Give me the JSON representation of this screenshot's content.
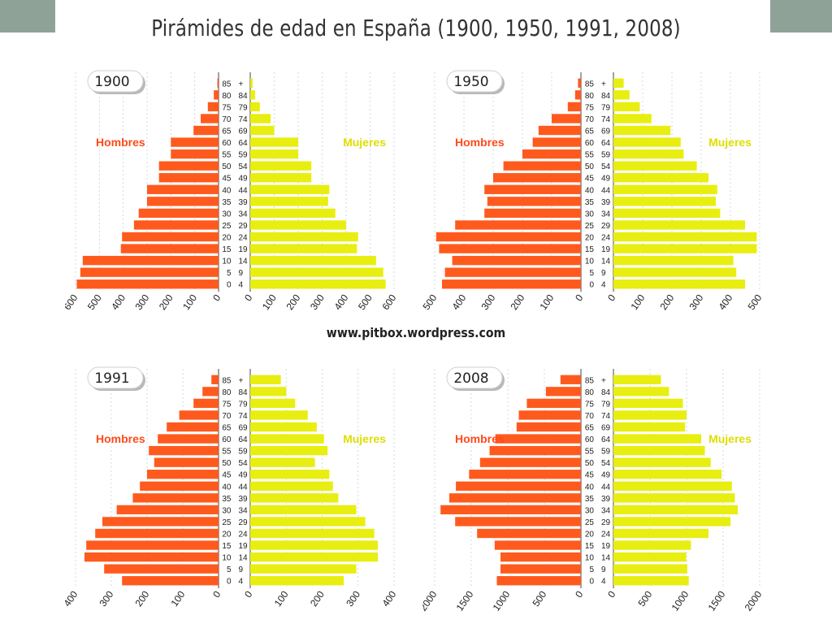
{
  "title": "Pirámides de edad en España (1900, 1950, 1991, 2008)",
  "credit": "www.pitbox.wordpress.com",
  "colors": {
    "hombres": "#ff5a1e",
    "mujeres": "#e8ee10",
    "label_hombres": "#ff4a1a",
    "label_mujeres": "#dede00",
    "grid": "#c8dde6"
  },
  "chart_data": [
    {
      "type": "bar",
      "year_label": "1900",
      "age_groups": [
        "0 4",
        "5 9",
        "10 14",
        "15 19",
        "20 24",
        "25 29",
        "30 34",
        "35 39",
        "40 44",
        "45 49",
        "50 54",
        "55 59",
        "60 64",
        "65 69",
        "70 74",
        "75 79",
        "80 84",
        "85 +"
      ],
      "series": [
        {
          "name": "Hombres",
          "values": [
            595,
            580,
            570,
            410,
            405,
            355,
            335,
            300,
            300,
            250,
            250,
            200,
            200,
            105,
            75,
            45,
            20,
            5
          ]
        },
        {
          "name": "Mujeres",
          "values": [
            565,
            555,
            525,
            445,
            450,
            400,
            355,
            325,
            330,
            255,
            255,
            200,
            200,
            100,
            85,
            40,
            20,
            10
          ]
        }
      ],
      "ticks_left": [
        "600",
        "500",
        "400",
        "300",
        "200",
        "100",
        "0"
      ],
      "ticks_right": [
        "0",
        "100",
        "200",
        "300",
        "400",
        "500",
        "600"
      ],
      "xlim": [
        0,
        600
      ]
    },
    {
      "type": "bar",
      "year_label": "1950",
      "age_groups": [
        "0 4",
        "5 9",
        "10 14",
        "15 19",
        "20 24",
        "25 29",
        "30 34",
        "35 39",
        "40 44",
        "45 49",
        "50 54",
        "55 59",
        "60 64",
        "65 69",
        "70 74",
        "75 79",
        "80 84",
        "85 +"
      ],
      "series": [
        {
          "name": "Hombres",
          "values": [
            475,
            465,
            440,
            485,
            495,
            430,
            330,
            320,
            330,
            300,
            265,
            200,
            165,
            145,
            100,
            45,
            20,
            10
          ]
        },
        {
          "name": "Mujeres",
          "values": [
            450,
            420,
            410,
            490,
            490,
            450,
            365,
            350,
            355,
            325,
            285,
            240,
            230,
            195,
            130,
            90,
            55,
            35
          ]
        }
      ],
      "ticks_left": [
        "500",
        "400",
        "300",
        "200",
        "100",
        "0"
      ],
      "ticks_right": [
        "0",
        "100",
        "200",
        "300",
        "400",
        "500"
      ],
      "xlim": [
        0,
        500
      ]
    },
    {
      "type": "bar",
      "year_label": "1991",
      "age_groups": [
        "0 4",
        "5 9",
        "10 14",
        "15 19",
        "20 24",
        "25 29",
        "30 34",
        "35 39",
        "40 44",
        "45 49",
        "50 54",
        "55 59",
        "60 64",
        "65 69",
        "70 74",
        "75 79",
        "80 84",
        "85 +"
      ],
      "series": [
        {
          "name": "Hombres",
          "values": [
            270,
            320,
            375,
            370,
            345,
            325,
            285,
            240,
            220,
            200,
            180,
            195,
            170,
            145,
            110,
            70,
            45,
            20
          ]
        },
        {
          "name": "Mujeres",
          "values": [
            260,
            295,
            355,
            355,
            345,
            320,
            295,
            245,
            230,
            220,
            180,
            215,
            205,
            185,
            160,
            125,
            100,
            85
          ]
        }
      ],
      "ticks_left": [
        "400",
        "300",
        "200",
        "100",
        "0"
      ],
      "ticks_right": [
        "0",
        "100",
        "200",
        "300",
        "400"
      ],
      "xlim": [
        0,
        400
      ]
    },
    {
      "type": "bar",
      "year_label": "2008",
      "age_groups": [
        "0 4",
        "5 9",
        "10 14",
        "15 19",
        "20 24",
        "25 29",
        "30 34",
        "35 39",
        "40 44",
        "45 49",
        "50 54",
        "55 59",
        "60 64",
        "65 69",
        "70 74",
        "75 79",
        "80 84",
        "85 +"
      ],
      "series": [
        {
          "name": "Hombres",
          "values": [
            1150,
            1100,
            1100,
            1180,
            1420,
            1720,
            1920,
            1800,
            1710,
            1530,
            1380,
            1250,
            1170,
            880,
            850,
            740,
            480,
            280
          ]
        },
        {
          "name": "Mujeres",
          "values": [
            1030,
            1010,
            995,
            1060,
            1300,
            1600,
            1700,
            1660,
            1620,
            1480,
            1330,
            1250,
            1200,
            980,
            1000,
            950,
            760,
            650
          ]
        }
      ],
      "ticks_left": [
        "2000",
        "1500",
        "1000",
        "500",
        "0"
      ],
      "ticks_right": [
        "0",
        "500",
        "1000",
        "1500",
        "2000"
      ],
      "xlim": [
        0,
        2000
      ]
    }
  ]
}
